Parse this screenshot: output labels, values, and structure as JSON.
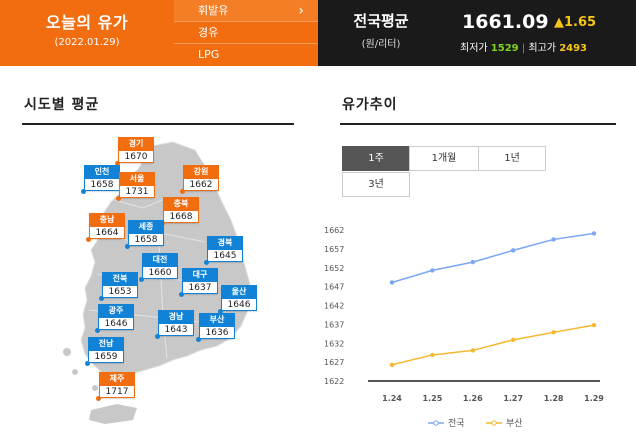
{
  "header": {
    "title": "오늘의 유가",
    "date": "(2022.01.29)",
    "fuel_tabs": [
      {
        "label": "휘발유",
        "selected": true
      },
      {
        "label": "경유",
        "selected": false
      },
      {
        "label": "LPG",
        "selected": false
      }
    ],
    "chevron": "›",
    "national": {
      "title": "전국평균",
      "unit": "(원/리터)",
      "price": "1661.09",
      "change": "▲1.65",
      "min_label": "최저가",
      "min_value": "1529",
      "max_label": "최고가",
      "max_value": "2493",
      "separator": "|"
    }
  },
  "regional": {
    "title": "시도별 평균",
    "regions": [
      {
        "name": "경기",
        "value": "1670",
        "color": "orange"
      },
      {
        "name": "인천",
        "value": "1658",
        "color": "blue"
      },
      {
        "name": "서울",
        "value": "1731",
        "color": "orange"
      },
      {
        "name": "강원",
        "value": "1662",
        "color": "orange"
      },
      {
        "name": "충북",
        "value": "1668",
        "color": "orange"
      },
      {
        "name": "충남",
        "value": "1664",
        "color": "orange"
      },
      {
        "name": "세종",
        "value": "1658",
        "color": "blue"
      },
      {
        "name": "경북",
        "value": "1645",
        "color": "blue"
      },
      {
        "name": "대전",
        "value": "1660",
        "color": "blue"
      },
      {
        "name": "전북",
        "value": "1653",
        "color": "blue"
      },
      {
        "name": "대구",
        "value": "1637",
        "color": "blue"
      },
      {
        "name": "울산",
        "value": "1646",
        "color": "blue"
      },
      {
        "name": "광주",
        "value": "1646",
        "color": "blue"
      },
      {
        "name": "경남",
        "value": "1643",
        "color": "blue"
      },
      {
        "name": "부산",
        "value": "1636",
        "color": "blue"
      },
      {
        "name": "전남",
        "value": "1659",
        "color": "blue"
      },
      {
        "name": "제주",
        "value": "1717",
        "color": "orange"
      }
    ]
  },
  "trend": {
    "title": "유가추이",
    "period_tabs": [
      {
        "label": "1주",
        "selected": true
      },
      {
        "label": "1개월",
        "selected": false
      },
      {
        "label": "1년",
        "selected": false
      },
      {
        "label": "3년",
        "selected": false
      }
    ]
  },
  "chart_data": {
    "type": "line",
    "x": [
      "1.24",
      "1.25",
      "1.26",
      "1.27",
      "1.28",
      "1.29"
    ],
    "ylim": [
      1622,
      1662
    ],
    "yticks": [
      "1662",
      "1657",
      "1652",
      "1647",
      "1642",
      "1637",
      "1632",
      "1627",
      "1622"
    ],
    "grid": false,
    "legend_position": "bottom",
    "series": [
      {
        "name": "전국",
        "color": "#7aa6f5",
        "values": [
          1648.1,
          1651.3,
          1653.5,
          1656.6,
          1659.5,
          1661.1
        ]
      },
      {
        "name": "부산",
        "color": "#f5b82e",
        "values": [
          1626.3,
          1628.9,
          1630.1,
          1632.9,
          1634.9,
          1636.8
        ]
      }
    ]
  },
  "colors": {
    "brand_orange": "#f26d10",
    "badge_blue": "#1282d6",
    "header_dark": "#1a1a1a",
    "up_yellow": "#f5c518",
    "min_green": "#7ed321"
  }
}
